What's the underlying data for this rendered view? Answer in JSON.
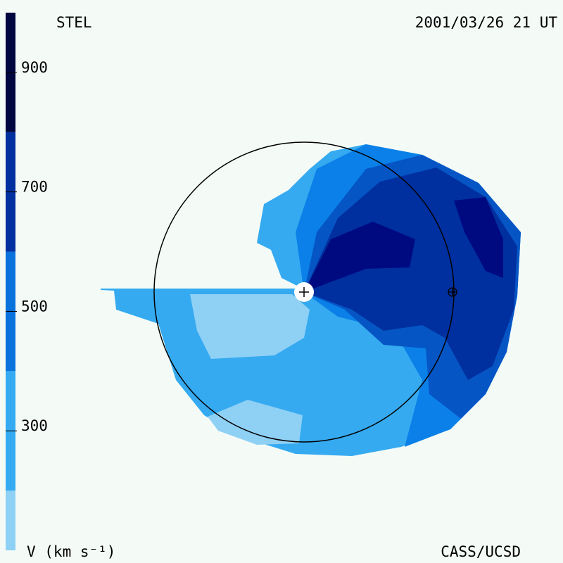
{
  "header": {
    "left": "STEL",
    "right": "2001/03/26 21 UT"
  },
  "footer": {
    "left": "V (km s⁻¹)",
    "right": "CASS/UCSD"
  },
  "colorbar": {
    "bounds": [
      100,
      200,
      400,
      600,
      800,
      1000
    ],
    "colors": [
      "#8fd0f5",
      "#35aaf0",
      "#0a72dc",
      "#0030a0",
      "#00063f"
    ],
    "ticks": [
      300,
      500,
      700,
      900
    ]
  }
}
